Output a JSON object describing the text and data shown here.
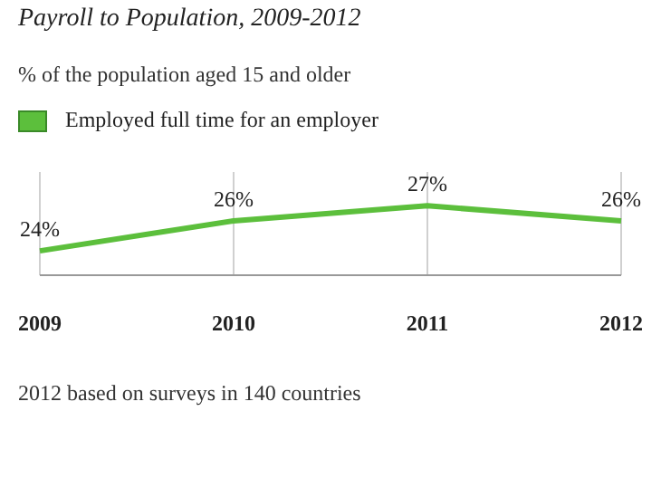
{
  "chart_data": {
    "type": "line",
    "title": "Payroll to Population, 2009-2012",
    "subtitle": "% of the population aged 15 and older",
    "categories": [
      "2009",
      "2010",
      "2011",
      "2012"
    ],
    "series": [
      {
        "name": "Employed full time for an employer",
        "color": "#5cbf3c",
        "values": [
          24,
          26,
          27,
          26
        ],
        "value_labels": [
          "24%",
          "26%",
          "27%",
          "26%"
        ]
      }
    ],
    "tick_labels": "x",
    "grid": "x",
    "legend": "top left",
    "marker": "none",
    "line_style": "solid",
    "annotations": [
      "2012 based on surveys in 140 countries"
    ]
  }
}
